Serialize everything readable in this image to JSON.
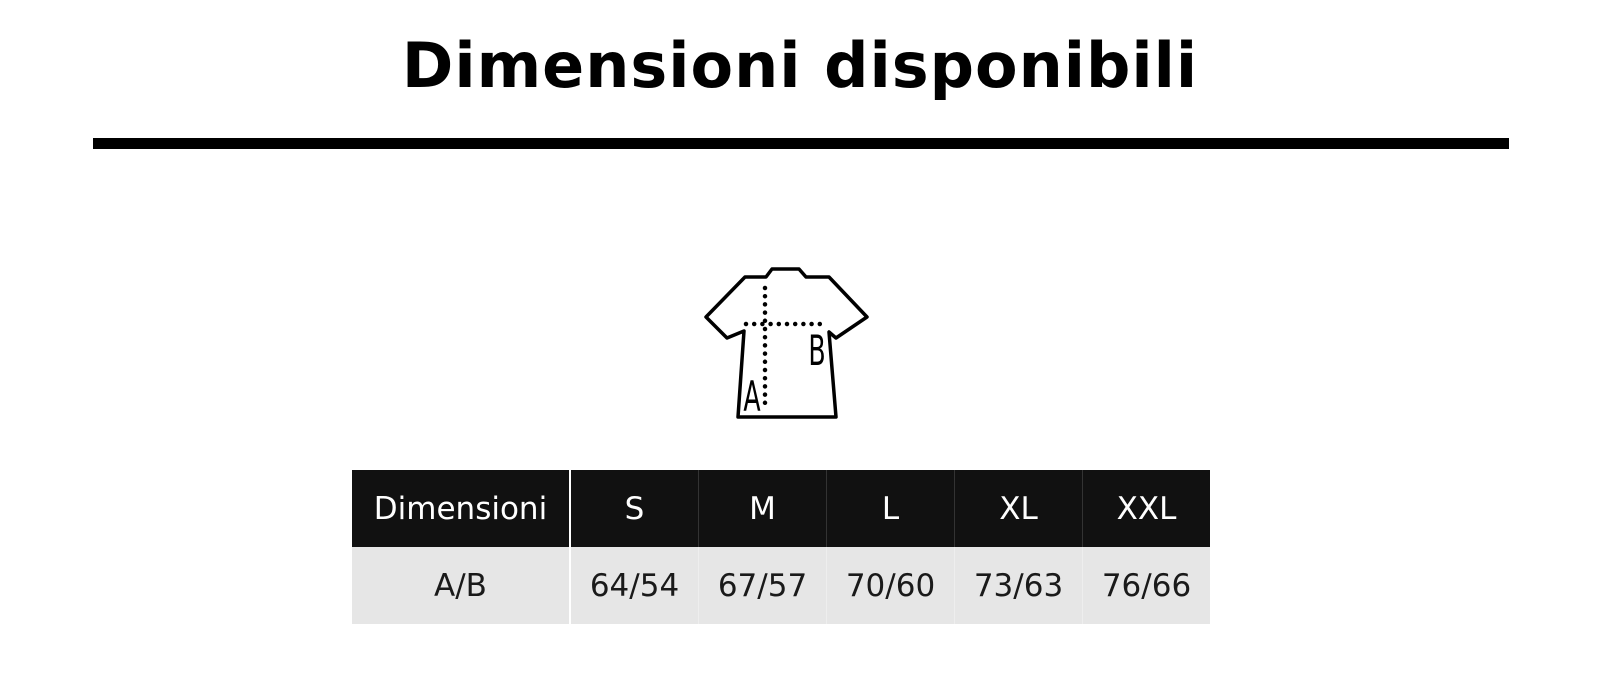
{
  "title": "Dimensioni disponibili",
  "diagram": {
    "label_a": "A",
    "label_b": "B"
  },
  "table": {
    "header": [
      "Dimensioni",
      "S",
      "M",
      "L",
      "XL",
      "XXL"
    ],
    "rows": [
      [
        "A/B",
        "64/54",
        "67/57",
        "70/60",
        "73/63",
        "76/66"
      ]
    ]
  }
}
